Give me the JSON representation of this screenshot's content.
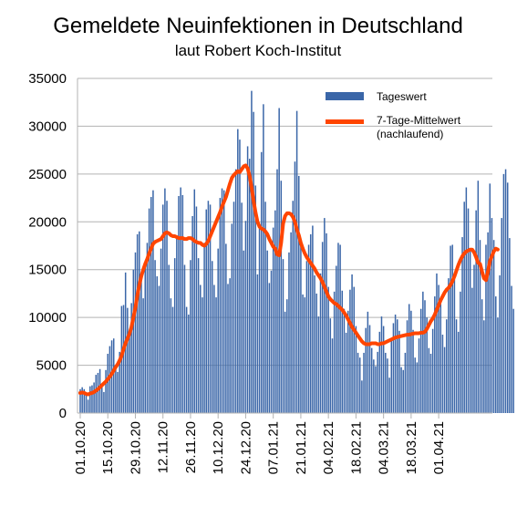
{
  "chart_data": {
    "type": "bar",
    "title": "Gemeldete Neuinfektionen in Deutschland",
    "subtitle": "laut Robert Koch-Institut",
    "xlabel": "",
    "ylabel": "",
    "ylim": [
      0,
      35000
    ],
    "yticks": [
      0,
      5000,
      10000,
      15000,
      20000,
      25000,
      30000,
      35000
    ],
    "grid": "horizontal",
    "legend_placement": "top-right",
    "x_start": "01.10.20",
    "xtick_labels": [
      "01.10.20",
      "15.10.20",
      "29.10.20",
      "12.11.20",
      "26.11.20",
      "10.12.20",
      "24.12.20",
      "07.01.21",
      "21.01.21",
      "04.02.21",
      "18.02.21",
      "04.03.21",
      "18.03.21",
      "01.04.21"
    ],
    "colors": {
      "bars": "#3a66a8",
      "line": "#ff4500",
      "grid": "#b3b3b3"
    },
    "series": [
      {
        "name": "Tageswert",
        "type": "bar",
        "values": [
          2500,
          2700,
          2500,
          1900,
          1400,
          2800,
          2900,
          3200,
          4000,
          4200,
          4600,
          3000,
          2200,
          4500,
          6200,
          7000,
          7600,
          7800,
          5000,
          4300,
          6400,
          11200,
          11300,
          14700,
          11000,
          8700,
          11500,
          15000,
          16800,
          18700,
          19000,
          14500,
          12000,
          15500,
          17800,
          21400,
          22600,
          23300,
          16000,
          14300,
          13300,
          17200,
          21800,
          23500,
          22200,
          15500,
          12000,
          11100,
          16200,
          18600,
          22700,
          23600,
          22800,
          15500,
          11100,
          10300,
          16000,
          20600,
          23400,
          21600,
          16200,
          13400,
          12100,
          17800,
          21300,
          22200,
          21800,
          15900,
          13400,
          12100,
          17200,
          22500,
          23500,
          23300,
          17700,
          13500,
          14100,
          19800,
          22100,
          25500,
          29700,
          28600,
          22000,
          17000,
          20100,
          27900,
          26600,
          33700,
          31500,
          23800,
          14500,
          19500,
          27300,
          32300,
          22100,
          17000,
          13600,
          14900,
          19400,
          21200,
          25500,
          31900,
          24300,
          16100,
          10600,
          11900,
          16800,
          18900,
          22200,
          26300,
          31600,
          24800,
          17800,
          12400,
          12100,
          15900,
          17600,
          18700,
          19600,
          14400,
          12500,
          10100,
          14600,
          17900,
          20400,
          18800,
          13200,
          9900,
          7800,
          12700,
          15400,
          17800,
          17600,
          12800,
          10900,
          8400,
          10700,
          12900,
          14500,
          13200,
          9100,
          6300,
          5800,
          3400,
          6300,
          8900,
          10600,
          9200,
          6800,
          5600,
          4900,
          6400,
          8500,
          10100,
          9100,
          6300,
          5700,
          3700,
          7700,
          9400,
          10300,
          9800,
          8600,
          4800,
          4500,
          6300,
          9700,
          11400,
          10700,
          8700,
          5800,
          5300,
          7800,
          10900,
          12700,
          11800,
          10000,
          6800,
          6200,
          8800,
          12200,
          14600,
          13400,
          11400,
          8200,
          6900,
          9800,
          14100,
          17500,
          17600,
          14000,
          9800,
          8500,
          12700,
          18400,
          22100,
          23600,
          21400,
          17100,
          13100,
          15500,
          21200,
          24300,
          18100,
          11900,
          9700,
          17600,
          18900,
          24000,
          20400,
          18100,
          12200,
          10000,
          14400,
          20400,
          25000,
          25500,
          24100,
          18300,
          13300,
          10900
        ]
      },
      {
        "name": "7-Tage-Mittelwert (nachlaufend)",
        "type": "line",
        "values": [
          2100,
          2150,
          2100,
          2000,
          1950,
          2050,
          2100,
          2200,
          2350,
          2500,
          2700,
          2900,
          3100,
          3300,
          3550,
          3800,
          4100,
          4450,
          4800,
          5100,
          5500,
          6000,
          6700,
          7300,
          7800,
          8300,
          9000,
          10000,
          11000,
          12300,
          13400,
          14300,
          15000,
          15600,
          16100,
          16700,
          17200,
          17700,
          17900,
          18000,
          18100,
          18200,
          18500,
          18800,
          18900,
          18800,
          18600,
          18500,
          18500,
          18400,
          18300,
          18300,
          18300,
          18200,
          18200,
          18300,
          18300,
          18200,
          18000,
          17900,
          17800,
          17800,
          17600,
          17500,
          17700,
          18000,
          18500,
          19000,
          19500,
          20000,
          20500,
          21000,
          21600,
          22100,
          22600,
          23300,
          24000,
          24600,
          24900,
          25100,
          25300,
          25200,
          25500,
          25800,
          25900,
          25600,
          24800,
          23600,
          22200,
          21000,
          20000,
          19500,
          19300,
          19200,
          19000,
          18700,
          18200,
          17800,
          17400,
          17200,
          16600,
          16500,
          17800,
          19800,
          20600,
          20900,
          20900,
          20800,
          20500,
          20000,
          19200,
          18600,
          17800,
          17200,
          16700,
          16300,
          16000,
          15700,
          15400,
          15100,
          14700,
          14400,
          14100,
          13700,
          13200,
          12700,
          12200,
          11900,
          11700,
          11500,
          11400,
          11200,
          11000,
          10800,
          10500,
          10200,
          9800,
          9400,
          9000,
          8700,
          8400,
          8100,
          7800,
          7500,
          7300,
          7200,
          7200,
          7200,
          7300,
          7300,
          7300,
          7200,
          7200,
          7300,
          7300,
          7400,
          7500,
          7600,
          7700,
          7800,
          7900,
          7950,
          8000,
          8050,
          8100,
          8150,
          8200,
          8200,
          8250,
          8300,
          8350,
          8350,
          8350,
          8400,
          8400,
          8500,
          8800,
          9200,
          9600,
          9900,
          10300,
          10800,
          11300,
          11800,
          12200,
          12600,
          12900,
          13100,
          13400,
          13800,
          14300,
          14900,
          15500,
          16000,
          16400,
          16700,
          16900,
          17000,
          17100,
          17100,
          16800,
          16300,
          15700,
          15600,
          14800,
          14100,
          13900,
          14800,
          15900,
          16400,
          16900,
          17200,
          17100
        ]
      }
    ]
  }
}
